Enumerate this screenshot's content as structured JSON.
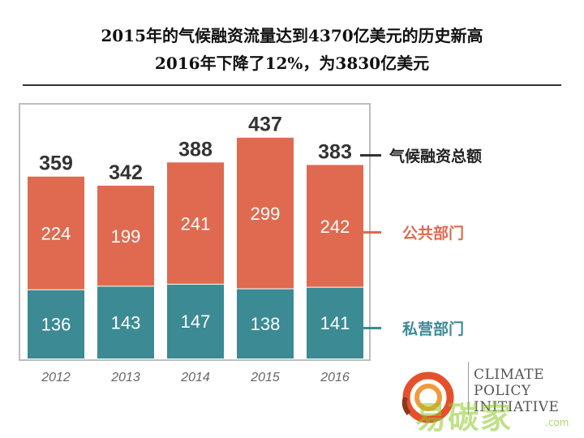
{
  "header": {
    "title_line1": "2015年的气候融资流量达到4370亿美元的历史新高",
    "title_line2": "2016年下降了12%，为3830亿美元"
  },
  "colors": {
    "public": "#df6a50",
    "private": "#3b8a94",
    "frame": "#bdbdbd",
    "axis_text": "#666666"
  },
  "chart_data": {
    "type": "bar",
    "stacked": true,
    "categories": [
      "2012",
      "2013",
      "2014",
      "2015",
      "2016"
    ],
    "series": [
      {
        "name": "私营部门",
        "values": [
          136,
          143,
          147,
          138,
          141
        ]
      },
      {
        "name": "公共部门",
        "values": [
          224,
          199,
          241,
          299,
          242
        ]
      }
    ],
    "totals": [
      359,
      342,
      388,
      437,
      383
    ],
    "total_label": "气候融资总额",
    "title": "2015年的气候融资流量达到4370亿美元的历史新高 2016年下降了12%，为3830亿美元",
    "xlabel": "",
    "ylabel": "",
    "ylim": [
      0,
      460
    ],
    "grid": false,
    "legend": "right"
  },
  "legend": {
    "total": "气候融资总额",
    "public": "公共部门",
    "private": "私营部门"
  },
  "logo": {
    "line1": "CLIMATE",
    "line2": "POLICY",
    "line3": "INITIATIVE"
  },
  "watermark": {
    "text": "易碳家",
    "suffix": ".com"
  }
}
